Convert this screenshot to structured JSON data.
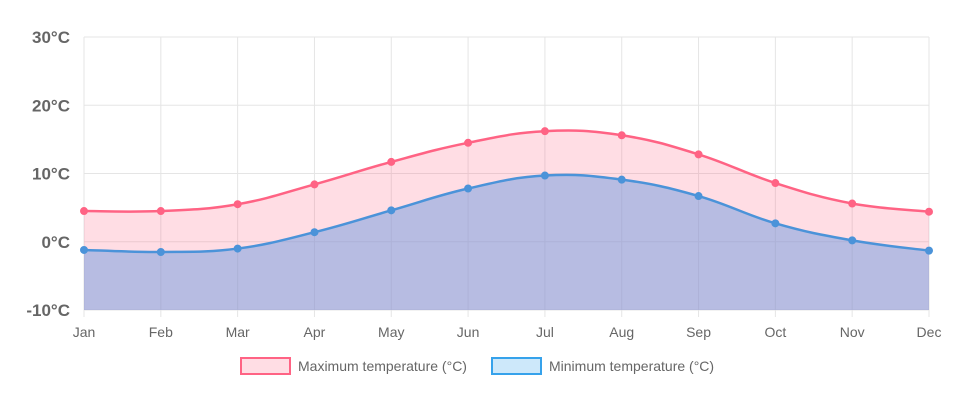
{
  "chart_data": {
    "type": "area",
    "categories": [
      "Jan",
      "Feb",
      "Mar",
      "Apr",
      "May",
      "Jun",
      "Jul",
      "Aug",
      "Sep",
      "Oct",
      "Nov",
      "Dec"
    ],
    "series": [
      {
        "name": "Maximum temperature (°C)",
        "values": [
          4.5,
          4.5,
          5.5,
          8.4,
          11.7,
          14.5,
          16.2,
          15.6,
          12.8,
          8.6,
          5.6,
          4.4
        ],
        "color": "#ff6384",
        "fill": "#ffb1c1"
      },
      {
        "name": "Minimum temperature (°C)",
        "values": [
          -1.2,
          -1.5,
          -1.0,
          1.4,
          4.6,
          7.8,
          9.7,
          9.1,
          6.7,
          2.7,
          0.2,
          -1.3
        ],
        "color": "#4b93d9",
        "fill": "#9ad0f5"
      }
    ],
    "yticks": [
      "30°C",
      "20°C",
      "10°C",
      "0°C",
      "-10°C"
    ],
    "ylim": [
      -10,
      30
    ],
    "ystep": 10,
    "grid": true,
    "legend_position": "bottom",
    "title": "",
    "xlabel": "",
    "ylabel": ""
  }
}
